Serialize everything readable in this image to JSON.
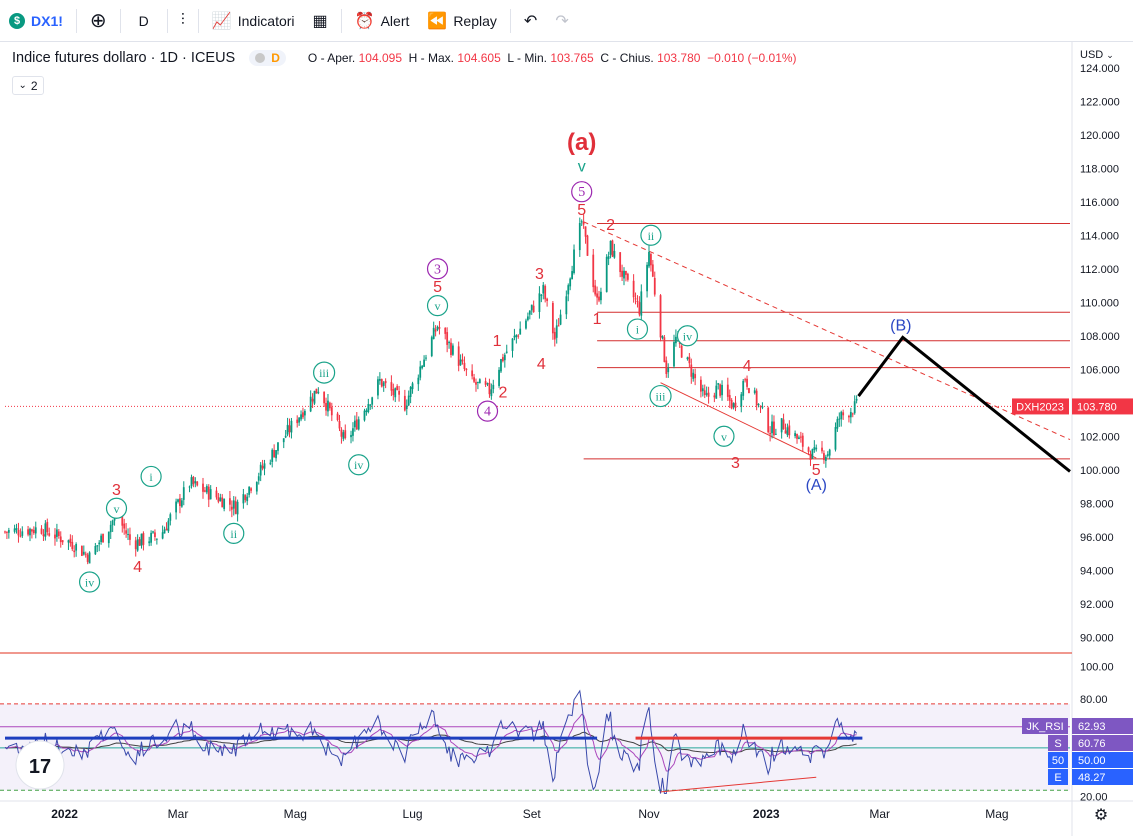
{
  "toolbar": {
    "symbol": "DX1!",
    "interval": "D",
    "indicators_label": "Indicatori",
    "alert_label": "Alert",
    "replay_label": "Replay"
  },
  "legend": {
    "title": "Indice futures dollaro · 1D · ICEUS",
    "delay_letter": "D",
    "o_label": "O - Aper.",
    "o_value": "104.095",
    "h_label": "H - Max.",
    "h_value": "104.605",
    "l_label": "L - Min.",
    "l_value": "103.765",
    "c_label": "C - Chius.",
    "c_value": "103.780",
    "change": "−0.010 (−0.01%)",
    "collapse_count": "2"
  },
  "price_axis": {
    "currency": "USD",
    "min": 89,
    "max": 125,
    "ticks": [
      "124.000",
      "122.000",
      "120.000",
      "118.000",
      "116.000",
      "114.000",
      "112.000",
      "110.000",
      "108.000",
      "106.000",
      "104.000",
      "102.000",
      "100.000",
      "98.000",
      "96.000",
      "94.000",
      "92.000",
      "90.000"
    ]
  },
  "rsi_axis": {
    "min": 18,
    "max": 107,
    "ticks": [
      "100.00",
      "80.00",
      "20.00"
    ]
  },
  "time_axis": [
    "2022",
    "Mar",
    "Mag",
    "Lug",
    "Set",
    "Nov",
    "2023",
    "Mar",
    "Mag"
  ],
  "price_badges": {
    "symbol": "DXH2023",
    "last": "103.780"
  },
  "rsi_badges": [
    {
      "label": "JK_RSI",
      "value": "62.93",
      "color": "#7e57c2"
    },
    {
      "label": "S",
      "value": "60.76",
      "color": "#7e57c2"
    },
    {
      "label": "50",
      "value": "50.00",
      "color": "#2962ff"
    },
    {
      "label": "E",
      "value": "48.27",
      "color": "#2962ff"
    }
  ],
  "colors": {
    "up": "#089981",
    "down": "#f23645",
    "accent": "#2962ff",
    "rsi": "#7e57c2",
    "wave_red": "#e0303a",
    "wave_teal": "#1aa38a",
    "wave_purple": "#9c27b0",
    "wave_blue": "#2c48c4"
  },
  "chart_data": {
    "type": "candlestick",
    "title": "Indice futures dollaro · 1D · ICEUS",
    "y_range": [
      89,
      125
    ],
    "x_range": [
      "2021-12-01",
      "2023-06-08"
    ],
    "trend_anchors": [
      {
        "date": "2021-12-01",
        "price": 96.3
      },
      {
        "date": "2021-12-20",
        "price": 96.5
      },
      {
        "date": "2022-01-05",
        "price": 95.6
      },
      {
        "date": "2022-01-14",
        "price": 94.8
      },
      {
        "date": "2022-01-28",
        "price": 97.3
      },
      {
        "date": "2022-02-05",
        "price": 95.6
      },
      {
        "date": "2022-02-20",
        "price": 96.1
      },
      {
        "date": "2022-03-07",
        "price": 99.2
      },
      {
        "date": "2022-03-31",
        "price": 97.8
      },
      {
        "date": "2022-05-13",
        "price": 104.9
      },
      {
        "date": "2022-05-27",
        "price": 101.6
      },
      {
        "date": "2022-06-14",
        "price": 105.3
      },
      {
        "date": "2022-06-27",
        "price": 103.9
      },
      {
        "date": "2022-07-14",
        "price": 108.6
      },
      {
        "date": "2022-08-01",
        "price": 105.2
      },
      {
        "date": "2022-08-10",
        "price": 104.7
      },
      {
        "date": "2022-08-16",
        "price": 106.5
      },
      {
        "date": "2022-09-07",
        "price": 110.7
      },
      {
        "date": "2022-09-13",
        "price": 107.8
      },
      {
        "date": "2022-09-27",
        "price": 114.8
      },
      {
        "date": "2022-10-05",
        "price": 110.0
      },
      {
        "date": "2022-10-12",
        "price": 113.3
      },
      {
        "date": "2022-10-20",
        "price": 111.2
      },
      {
        "date": "2022-10-27",
        "price": 109.6
      },
      {
        "date": "2022-11-01",
        "price": 113.0
      },
      {
        "date": "2022-11-10",
        "price": 106.0
      },
      {
        "date": "2022-11-15",
        "price": 107.8
      },
      {
        "date": "2022-11-30",
        "price": 104.2
      },
      {
        "date": "2022-12-07",
        "price": 104.9
      },
      {
        "date": "2022-12-15",
        "price": 103.8
      },
      {
        "date": "2022-12-21",
        "price": 105.5
      },
      {
        "date": "2023-01-03",
        "price": 102.4
      },
      {
        "date": "2023-01-10",
        "price": 102.7
      },
      {
        "date": "2023-01-25",
        "price": 100.9
      },
      {
        "date": "2023-02-02",
        "price": 101.0
      },
      {
        "date": "2023-02-08",
        "price": 103.1
      },
      {
        "date": "2023-02-13",
        "price": 103.5
      },
      {
        "date": "2023-02-17",
        "price": 103.8
      }
    ],
    "last_ohlc": {
      "open": 104.095,
      "high": 104.605,
      "low": 103.765,
      "close": 103.78,
      "change": "−0.010 (−0.01%)"
    },
    "horizontal_levels": [
      {
        "price": 114.7,
        "start": "2022-10-05"
      },
      {
        "price": 109.4,
        "start": "2022-10-05"
      },
      {
        "price": 107.7,
        "start": "2022-10-05"
      },
      {
        "price": 106.1,
        "start": "2022-10-05"
      },
      {
        "price": 100.65,
        "start": "2022-09-28"
      }
    ],
    "trend_lines": [
      {
        "style": "dashed",
        "from": {
          "date": "2022-09-28",
          "price": 114.8
        },
        "to": {
          "date": "2023-06-08",
          "price": 101.8
        }
      },
      {
        "style": "solid",
        "from": {
          "date": "2022-11-07",
          "price": 105.2
        },
        "to": {
          "date": "2023-01-27",
          "price": 100.7
        }
      }
    ],
    "projection_path": [
      {
        "date": "2023-02-18",
        "price": 104.4
      },
      {
        "date": "2023-03-13",
        "price": 107.9
      },
      {
        "date": "2023-06-08",
        "price": 99.9
      }
    ],
    "wave_labels": [
      {
        "text": "(a)",
        "date": "2022-09-27",
        "price": 119.4,
        "style": "plain-big",
        "color": "red"
      },
      {
        "text": "v",
        "date": "2022-09-27",
        "price": 118.1,
        "style": "plain",
        "color": "teal"
      },
      {
        "text": "5",
        "date": "2022-09-27",
        "price": 116.6,
        "style": "circle",
        "color": "purple"
      },
      {
        "text": "5",
        "date": "2022-09-27",
        "price": 115.5,
        "style": "plain",
        "color": "red"
      },
      {
        "text": "2",
        "date": "2022-10-12",
        "price": 114.6,
        "style": "plain",
        "color": "red"
      },
      {
        "text": "ii",
        "date": "2022-11-02",
        "price": 114.0,
        "style": "circle",
        "color": "teal"
      },
      {
        "text": "1",
        "date": "2022-10-05",
        "price": 109.0,
        "style": "plain",
        "color": "red"
      },
      {
        "text": "i",
        "date": "2022-10-26",
        "price": 108.4,
        "style": "circle",
        "color": "teal"
      },
      {
        "text": "iv",
        "date": "2022-11-21",
        "price": 108.0,
        "style": "circle",
        "color": "teal"
      },
      {
        "text": "iii",
        "date": "2022-11-07",
        "price": 104.4,
        "style": "circle",
        "color": "teal"
      },
      {
        "text": "4",
        "date": "2022-12-22",
        "price": 106.2,
        "style": "plain",
        "color": "red"
      },
      {
        "text": "v",
        "date": "2022-12-10",
        "price": 102.0,
        "style": "circle",
        "color": "teal"
      },
      {
        "text": "3",
        "date": "2022-12-16",
        "price": 100.4,
        "style": "plain",
        "color": "red"
      },
      {
        "text": "5",
        "date": "2023-01-27",
        "price": 100.0,
        "style": "plain",
        "color": "red"
      },
      {
        "text": "(A)",
        "date": "2023-01-27",
        "price": 99.1,
        "style": "plain",
        "color": "blue"
      },
      {
        "text": "(B)",
        "date": "2023-03-12",
        "price": 108.6,
        "style": "plain",
        "color": "blue"
      },
      {
        "text": "3",
        "date": "2022-09-05",
        "price": 111.7,
        "style": "plain",
        "color": "red"
      },
      {
        "text": "4",
        "date": "2022-09-06",
        "price": 106.3,
        "style": "plain",
        "color": "red"
      },
      {
        "text": "1",
        "date": "2022-08-14",
        "price": 107.7,
        "style": "plain",
        "color": "red"
      },
      {
        "text": "2",
        "date": "2022-08-17",
        "price": 104.6,
        "style": "plain",
        "color": "red"
      },
      {
        "text": "4",
        "date": "2022-08-09",
        "price": 103.5,
        "style": "circle",
        "color": "purple"
      },
      {
        "text": "3",
        "date": "2022-07-14",
        "price": 112.0,
        "style": "circle",
        "color": "purple"
      },
      {
        "text": "5",
        "date": "2022-07-14",
        "price": 110.9,
        "style": "plain",
        "color": "red"
      },
      {
        "text": "v",
        "date": "2022-07-14",
        "price": 109.8,
        "style": "circle",
        "color": "teal"
      },
      {
        "text": "iii",
        "date": "2022-05-16",
        "price": 105.8,
        "style": "circle",
        "color": "teal"
      },
      {
        "text": "iv",
        "date": "2022-06-03",
        "price": 100.3,
        "style": "circle",
        "color": "teal"
      },
      {
        "text": "i",
        "date": "2022-02-15",
        "price": 99.6,
        "style": "circle",
        "color": "teal"
      },
      {
        "text": "ii",
        "date": "2022-03-30",
        "price": 96.2,
        "style": "circle",
        "color": "teal"
      },
      {
        "text": "3",
        "date": "2022-01-28",
        "price": 98.8,
        "style": "plain",
        "color": "red"
      },
      {
        "text": "v",
        "date": "2022-01-28",
        "price": 97.7,
        "style": "circle",
        "color": "teal"
      },
      {
        "text": "4",
        "date": "2022-02-08",
        "price": 94.2,
        "style": "plain",
        "color": "red"
      },
      {
        "text": "iv",
        "date": "2022-01-14",
        "price": 93.3,
        "style": "circle",
        "color": "teal"
      }
    ],
    "rsi_panel": {
      "name": "JK_RSI",
      "values": {
        "JK_RSI": 62.93,
        "S": 60.76,
        "mid": 50.0,
        "E": 48.27
      },
      "levels": {
        "upper_dashed": 77,
        "lower_dashed": 24,
        "green": 50
      },
      "support_segments": [
        {
          "from": "2021-12-01",
          "to": "2022-10-05",
          "value": 56.0,
          "color": "blue"
        },
        {
          "from": "2022-10-25",
          "to": "2023-02-07",
          "value": 56.0,
          "color": "red"
        },
        {
          "from": "2023-02-07",
          "to": "2023-02-20",
          "value": 56.0,
          "color": "blue"
        }
      ],
      "divergence_line": {
        "from": {
          "date": "2022-11-07",
          "value": 23
        },
        "to": {
          "date": "2023-01-27",
          "value": 32
        }
      }
    }
  }
}
